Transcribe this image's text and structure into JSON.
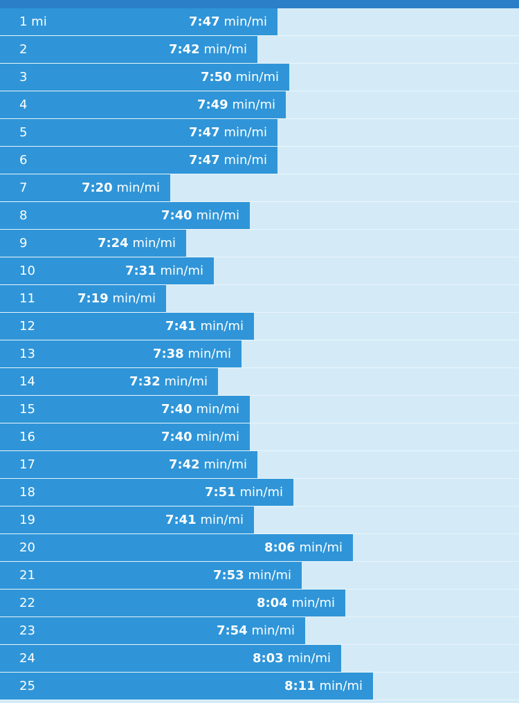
{
  "colors": {
    "header": "#2a7fc8",
    "bar": "#2f95d8",
    "track": "#d4ebf7",
    "text": "#ffffff"
  },
  "pace_unit": "min/mi",
  "splits": [
    {
      "label": "1 mi",
      "pace": "7:47",
      "seconds": 467
    },
    {
      "label": "2",
      "pace": "7:42",
      "seconds": 462
    },
    {
      "label": "3",
      "pace": "7:50",
      "seconds": 470
    },
    {
      "label": "4",
      "pace": "7:49",
      "seconds": 469
    },
    {
      "label": "5",
      "pace": "7:47",
      "seconds": 467
    },
    {
      "label": "6",
      "pace": "7:47",
      "seconds": 467
    },
    {
      "label": "7",
      "pace": "7:20",
      "seconds": 440
    },
    {
      "label": "8",
      "pace": "7:40",
      "seconds": 460
    },
    {
      "label": "9",
      "pace": "7:24",
      "seconds": 444
    },
    {
      "label": "10",
      "pace": "7:31",
      "seconds": 451
    },
    {
      "label": "11",
      "pace": "7:19",
      "seconds": 439
    },
    {
      "label": "12",
      "pace": "7:41",
      "seconds": 461
    },
    {
      "label": "13",
      "pace": "7:38",
      "seconds": 458
    },
    {
      "label": "14",
      "pace": "7:32",
      "seconds": 452
    },
    {
      "label": "15",
      "pace": "7:40",
      "seconds": 460
    },
    {
      "label": "16",
      "pace": "7:40",
      "seconds": 460
    },
    {
      "label": "17",
      "pace": "7:42",
      "seconds": 462
    },
    {
      "label": "18",
      "pace": "7:51",
      "seconds": 471
    },
    {
      "label": "19",
      "pace": "7:41",
      "seconds": 461
    },
    {
      "label": "20",
      "pace": "8:06",
      "seconds": 486
    },
    {
      "label": "21",
      "pace": "7:53",
      "seconds": 473
    },
    {
      "label": "22",
      "pace": "8:04",
      "seconds": 484
    },
    {
      "label": "23",
      "pace": "7:54",
      "seconds": 474
    },
    {
      "label": "24",
      "pace": "8:03",
      "seconds": 483
    },
    {
      "label": "25",
      "pace": "8:11",
      "seconds": 491
    }
  ]
}
